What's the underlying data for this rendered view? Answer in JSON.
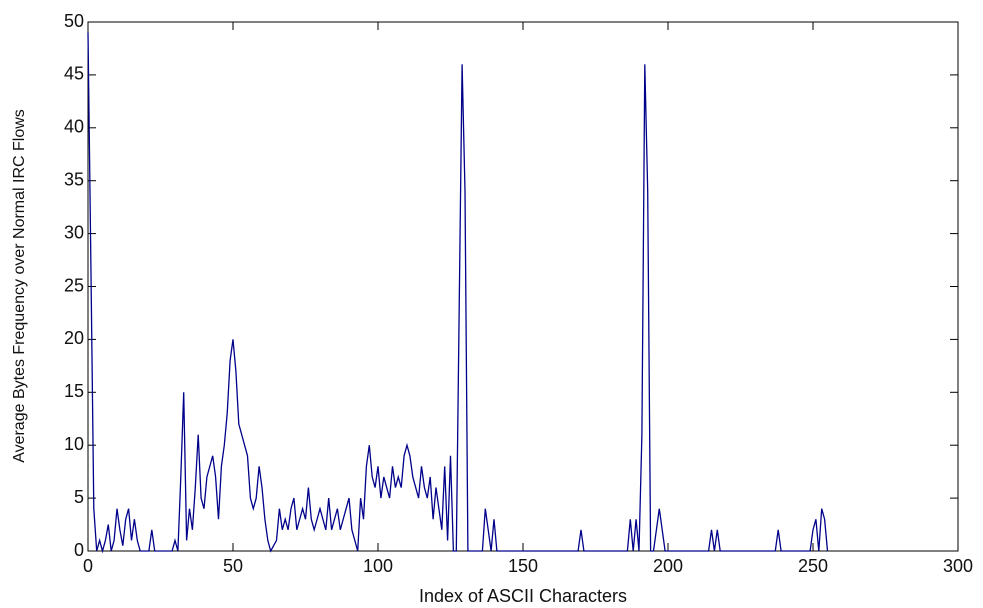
{
  "chart_data": {
    "type": "line",
    "xlabel": "Index of ASCII Characters",
    "ylabel": "Average Bytes Frequency over Normal IRC Flows",
    "x": [
      0,
      1,
      2,
      3,
      4,
      5,
      6,
      7,
      8,
      9,
      10,
      11,
      12,
      13,
      14,
      15,
      16,
      17,
      18,
      19,
      20,
      21,
      22,
      23,
      24,
      25,
      26,
      27,
      28,
      29,
      30,
      31,
      32,
      33,
      34,
      35,
      36,
      37,
      38,
      39,
      40,
      41,
      42,
      43,
      44,
      45,
      46,
      47,
      48,
      49,
      50,
      51,
      52,
      53,
      54,
      55,
      56,
      57,
      58,
      59,
      60,
      61,
      62,
      63,
      64,
      65,
      66,
      67,
      68,
      69,
      70,
      71,
      72,
      73,
      74,
      75,
      76,
      77,
      78,
      79,
      80,
      81,
      82,
      83,
      84,
      85,
      86,
      87,
      88,
      89,
      90,
      91,
      92,
      93,
      94,
      95,
      96,
      97,
      98,
      99,
      100,
      101,
      102,
      103,
      104,
      105,
      106,
      107,
      108,
      109,
      110,
      111,
      112,
      113,
      114,
      115,
      116,
      117,
      118,
      119,
      120,
      121,
      122,
      123,
      124,
      125,
      126,
      127,
      128,
      129,
      130,
      131,
      132,
      133,
      134,
      135,
      136,
      137,
      138,
      139,
      140,
      141,
      142,
      143,
      144,
      145,
      146,
      147,
      148,
      149,
      150,
      151,
      152,
      153,
      154,
      155,
      156,
      157,
      158,
      159,
      160,
      161,
      162,
      163,
      164,
      165,
      166,
      167,
      168,
      169,
      170,
      171,
      172,
      173,
      174,
      175,
      176,
      177,
      178,
      179,
      180,
      181,
      182,
      183,
      184,
      185,
      186,
      187,
      188,
      189,
      190,
      191,
      192,
      193,
      194,
      195,
      196,
      197,
      198,
      199,
      200,
      201,
      202,
      203,
      204,
      205,
      206,
      207,
      208,
      209,
      210,
      211,
      212,
      213,
      214,
      215,
      216,
      217,
      218,
      219,
      220,
      221,
      222,
      223,
      224,
      225,
      226,
      227,
      228,
      229,
      230,
      231,
      232,
      233,
      234,
      235,
      236,
      237,
      238,
      239,
      240,
      241,
      242,
      243,
      244,
      245,
      246,
      247,
      248,
      249,
      250,
      251,
      252,
      253,
      254,
      255
    ],
    "values": [
      49,
      27,
      4,
      0,
      1,
      0,
      1,
      2.5,
      0,
      1,
      4,
      2,
      0.5,
      3,
      4,
      1,
      3,
      1,
      0,
      0,
      0,
      0,
      2,
      0,
      0,
      0,
      0,
      0,
      0,
      0,
      1,
      0,
      7,
      15,
      1,
      4,
      2,
      6,
      11,
      5,
      4,
      7,
      8,
      9,
      7,
      3,
      8,
      10,
      13,
      18,
      20,
      17,
      12,
      11,
      10,
      9,
      5,
      4,
      5,
      8,
      6,
      3,
      1,
      0,
      0.5,
      1,
      4,
      2,
      3,
      2,
      4,
      5,
      2,
      3,
      4,
      3,
      6,
      3,
      2,
      3,
      4,
      3,
      2,
      5,
      2,
      3,
      4,
      2,
      3,
      4,
      5,
      2,
      1,
      0,
      5,
      3,
      8,
      10,
      7,
      6,
      8,
      5,
      7,
      6,
      5,
      8,
      6,
      7,
      6,
      9,
      10,
      9,
      7,
      6,
      5,
      8,
      6,
      5,
      7,
      3,
      6,
      4,
      2,
      8,
      1,
      9,
      0,
      0,
      23,
      46,
      34,
      0,
      0,
      0,
      0,
      0,
      0,
      4,
      2,
      0,
      3,
      0,
      0,
      0,
      0,
      0,
      0,
      0,
      0,
      0,
      0,
      0,
      0,
      0,
      0,
      0,
      0,
      0,
      0,
      0,
      0,
      0,
      0,
      0,
      0,
      0,
      0,
      0,
      0,
      0,
      2,
      0,
      0,
      0,
      0,
      0,
      0,
      0,
      0,
      0,
      0,
      0,
      0,
      0,
      0,
      0,
      0,
      3,
      0,
      3,
      0,
      11,
      46,
      34,
      0,
      0,
      2,
      4,
      2,
      0,
      0,
      0,
      0,
      0,
      0,
      0,
      0,
      0,
      0,
      0,
      0,
      0,
      0,
      0,
      0,
      2,
      0,
      2,
      0,
      0,
      0,
      0,
      0,
      0,
      0,
      0,
      0,
      0,
      0,
      0,
      0,
      0,
      0,
      0,
      0,
      0,
      0,
      0,
      2,
      0,
      0,
      0,
      0,
      0,
      0,
      0,
      0,
      0,
      0,
      0,
      2,
      3,
      0,
      4,
      3,
      0
    ],
    "color": "#00008b",
    "xlim": [
      0,
      300
    ],
    "xticks": [
      0,
      50,
      100,
      150,
      200,
      250,
      300
    ],
    "ylim": [
      0,
      50
    ],
    "yticks": [
      0,
      5,
      10,
      15,
      20,
      25,
      30,
      35,
      40,
      45,
      50
    ]
  }
}
